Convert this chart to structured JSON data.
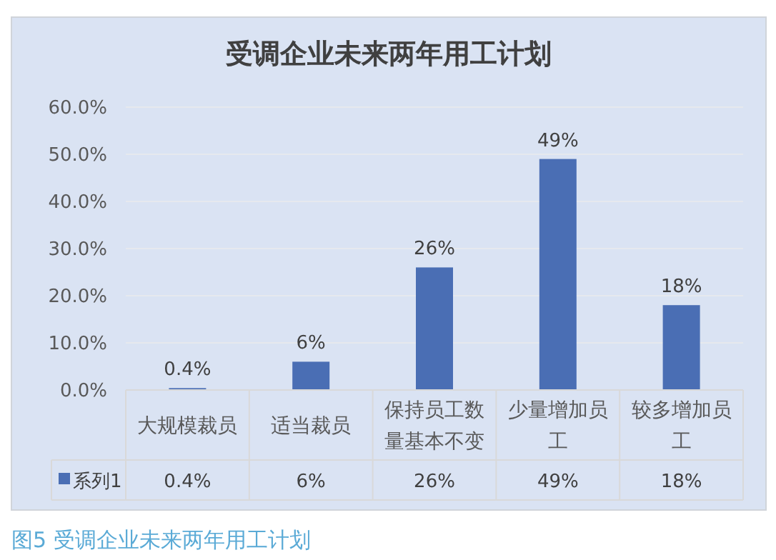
{
  "chart_data": {
    "type": "bar",
    "title": "受调企业未来两年用工计划",
    "categories": [
      "大规模裁员",
      "适当裁员",
      "保持员工数量基本不变",
      "少量增加员工",
      "较多增加员工"
    ],
    "series": [
      {
        "name": "系列1",
        "color": "#4a6eb4",
        "values": [
          0.4,
          6,
          26,
          49,
          18
        ],
        "value_labels": [
          "0.4%",
          "6%",
          "26%",
          "49%",
          "18%"
        ]
      }
    ],
    "ylim": [
      0,
      60
    ],
    "yticks": [
      {
        "value": 0,
        "label": "0.0%"
      },
      {
        "value": 10,
        "label": "10.0%"
      },
      {
        "value": 20,
        "label": "20.0%"
      },
      {
        "value": 30,
        "label": "30.0%"
      },
      {
        "value": 40,
        "label": "40.0%"
      },
      {
        "value": 50,
        "label": "50.0%"
      },
      {
        "value": 60,
        "label": "60.0%"
      }
    ],
    "grid": "y",
    "legend": "bottom",
    "annotations": [
      "图5 受调企业未来两年用工计划"
    ]
  }
}
